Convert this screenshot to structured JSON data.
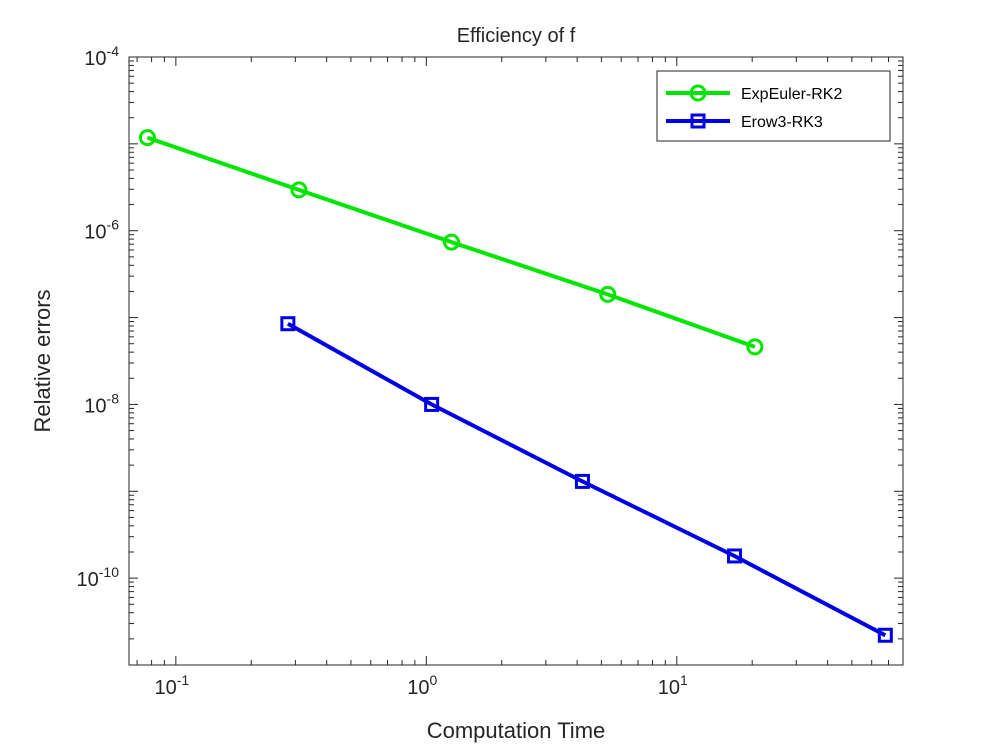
{
  "chart_data": {
    "type": "line",
    "title": "Efficiency of f",
    "xlabel": "Computation Time",
    "ylabel": "Relative errors",
    "xscale": "log",
    "yscale": "log",
    "xlim": [
      0.065,
      80
    ],
    "ylim": [
      1e-11,
      0.0001
    ],
    "grid": false,
    "legend_position": "top-right",
    "x_ticks": [
      {
        "value": 0.1,
        "base": "10",
        "exp": "-1"
      },
      {
        "value": 1,
        "base": "10",
        "exp": "0"
      },
      {
        "value": 10,
        "base": "10",
        "exp": "1"
      }
    ],
    "y_ticks": [
      {
        "value": 0.0001,
        "base": "10",
        "exp": "-4"
      },
      {
        "value": 1e-06,
        "base": "10",
        "exp": "-6"
      },
      {
        "value": 1e-08,
        "base": "10",
        "exp": "-8"
      },
      {
        "value": 1e-10,
        "base": "10",
        "exp": "-10"
      }
    ],
    "series": [
      {
        "name": "ExpEuler-RK2",
        "color": "#00e600",
        "marker": "circle",
        "x": [
          0.077,
          0.31,
          1.26,
          5.3,
          20.5
        ],
        "y": [
          1.18e-05,
          2.95e-06,
          7.4e-07,
          1.85e-07,
          4.6e-08
        ]
      },
      {
        "name": "Erow3-RK3",
        "color": "#0000e6",
        "marker": "square",
        "x": [
          0.28,
          1.05,
          4.2,
          17,
          68
        ],
        "y": [
          8.5e-08,
          1e-08,
          1.3e-09,
          1.8e-10,
          2.2e-11
        ]
      }
    ]
  }
}
